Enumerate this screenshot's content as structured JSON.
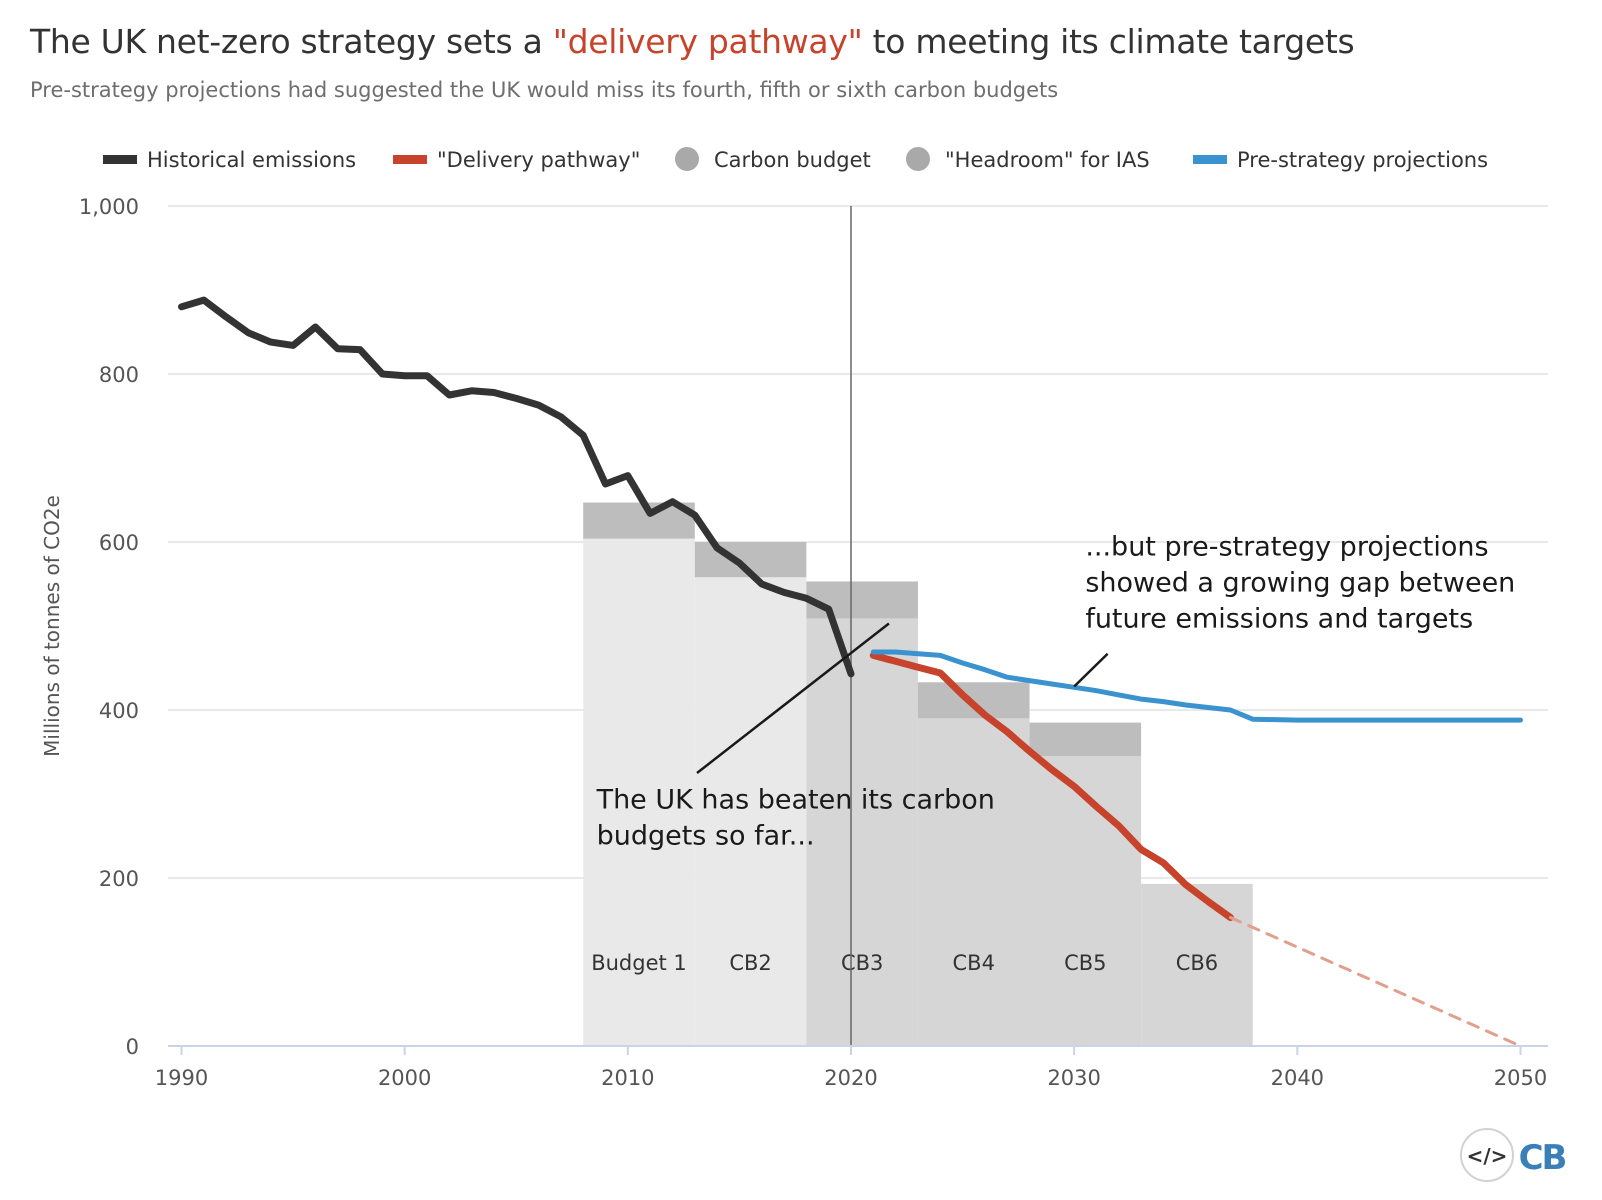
{
  "title": {
    "prefix": "The UK net-zero strategy sets a ",
    "highlight": "\"delivery pathway\"",
    "suffix": " to meeting its climate targets"
  },
  "subtitle": "Pre-strategy projections had suggested the UK would miss its fourth, fifth or sixth carbon budgets",
  "colors": {
    "historical": "#333333",
    "delivery": "#c7432b",
    "delivery_extension": "#e0a08c",
    "projections": "#3a93cf",
    "budget_dark": "#d6d6d6",
    "budget_light": "#e9e9e9",
    "headroom": "#bdbdbd",
    "grid": "#e2e2e2",
    "axis": "#c9d4e6"
  },
  "logo": {
    "code_icon": "</>",
    "brand": "CB"
  },
  "chart_data": {
    "type": "line",
    "title": "The UK net-zero strategy sets a \"delivery pathway\" to meeting its climate targets",
    "xlabel": "",
    "ylabel": "Millions of tonnes of CO2e",
    "xlim": [
      1989.5,
      2051
    ],
    "ylim": [
      0,
      1000
    ],
    "yticks": [
      0,
      200,
      400,
      600,
      800,
      1000
    ],
    "ytick_labels": [
      "0",
      "200",
      "400",
      "600",
      "800",
      "1,000"
    ],
    "xticks": [
      1990,
      2000,
      2010,
      2020,
      2030,
      2040,
      2050
    ],
    "xtick_labels": [
      "1990",
      "2000",
      "2010",
      "2020",
      "2030",
      "2040",
      "2050"
    ],
    "grid": true,
    "legend_position": "top",
    "legend": [
      {
        "key": "historical",
        "label": "Historical emissions",
        "symbol": "line"
      },
      {
        "key": "delivery",
        "label": "\"Delivery pathway\"",
        "symbol": "line"
      },
      {
        "key": "budget",
        "label": "Carbon budget",
        "symbol": "dot"
      },
      {
        "key": "headroom",
        "label": "\"Headroom\" for IAS",
        "symbol": "dot"
      },
      {
        "key": "projections",
        "label": "Pre-strategy projections",
        "symbol": "line"
      }
    ],
    "series": [
      {
        "name": "Historical emissions",
        "key": "historical",
        "x": [
          1990,
          1991,
          1992,
          1993,
          1994,
          1995,
          1996,
          1997,
          1998,
          1999,
          2000,
          2001,
          2002,
          2003,
          2004,
          2005,
          2006,
          2007,
          2008,
          2009,
          2010,
          2011,
          2012,
          2013,
          2014,
          2015,
          2016,
          2017,
          2018,
          2019,
          2020
        ],
        "values": [
          880,
          888,
          868,
          849,
          838,
          834,
          856,
          830,
          829,
          800,
          798,
          798,
          775,
          780,
          778,
          771,
          763,
          749,
          727,
          669,
          679,
          634,
          648,
          632,
          593,
          575,
          550,
          540,
          533,
          520,
          443
        ]
      },
      {
        "name": "\"Delivery pathway\"",
        "key": "delivery",
        "x": [
          2021,
          2022,
          2023,
          2024,
          2025,
          2026,
          2027,
          2028,
          2029,
          2030,
          2031,
          2032,
          2033,
          2034,
          2035,
          2036,
          2037
        ],
        "values": [
          465,
          458,
          451,
          444,
          418,
          394,
          374,
          351,
          329,
          309,
          285,
          262,
          234,
          218,
          192,
          172,
          153
        ]
      },
      {
        "name": "\"Delivery pathway\" extension",
        "key": "delivery_extension",
        "dashed": true,
        "x": [
          2037,
          2050
        ],
        "values": [
          153,
          0
        ]
      },
      {
        "name": "Pre-strategy projections",
        "key": "projections",
        "x": [
          2021,
          2022,
          2023,
          2024,
          2025,
          2026,
          2027,
          2028,
          2029,
          2030,
          2031,
          2032,
          2033,
          2034,
          2035,
          2036,
          2037,
          2038,
          2040,
          2045,
          2050
        ],
        "values": [
          469,
          469,
          467,
          465,
          456,
          448,
          439,
          435,
          431,
          427,
          423,
          418,
          413,
          410,
          406,
          403,
          400,
          389,
          388,
          388,
          388
        ]
      }
    ],
    "carbon_budgets": [
      {
        "label": "Budget 1",
        "start": 2008,
        "end": 2012,
        "budget": 604,
        "headroom_top": 647,
        "fill": "light"
      },
      {
        "label": "CB2",
        "start": 2013,
        "end": 2017,
        "budget": 558,
        "headroom_top": 600,
        "fill": "light"
      },
      {
        "label": "CB3",
        "start": 2018,
        "end": 2022,
        "budget": 509,
        "headroom_top": 553,
        "fill": "dark"
      },
      {
        "label": "CB4",
        "start": 2023,
        "end": 2027,
        "budget": 390,
        "headroom_top": 433,
        "fill": "dark"
      },
      {
        "label": "CB5",
        "start": 2028,
        "end": 2032,
        "budget": 345,
        "headroom_top": 385,
        "fill": "dark"
      },
      {
        "label": "CB6",
        "start": 2033,
        "end": 2037,
        "budget": 193,
        "headroom_top": 193,
        "fill": "dark"
      }
    ],
    "reference_line_year": 2020,
    "annotations": [
      {
        "key": "beaten",
        "lines": [
          "The UK has beaten its carbon",
          "budgets so far..."
        ],
        "text_x": 2008.6,
        "text_y": 283,
        "line_from": [
          2013.1,
          325
        ],
        "line_to": [
          2021.7,
          503
        ]
      },
      {
        "key": "gap",
        "lines": [
          "...but pre-strategy projections",
          "showed a growing gap between",
          "future emissions and targets"
        ],
        "text_x": 2030.5,
        "text_y": 584,
        "line_from": [
          2031.5,
          467
        ],
        "line_to": [
          2030,
          428
        ]
      }
    ]
  }
}
